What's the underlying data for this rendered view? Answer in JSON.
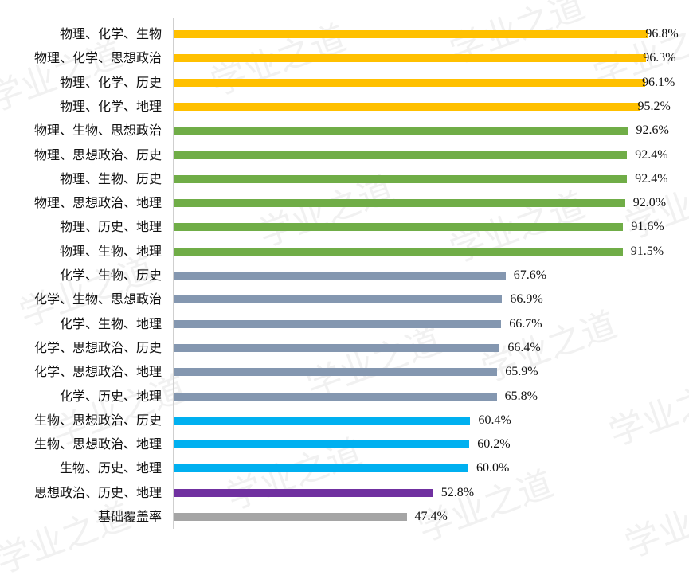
{
  "chart_data": {
    "type": "bar",
    "orientation": "horizontal",
    "title": "",
    "xlabel": "",
    "ylabel": "",
    "xlim": [
      0,
      100
    ],
    "grid": false,
    "legend": null,
    "categories": [
      "物理、化学、生物",
      "物理、化学、思想政治",
      "物理、化学、历史",
      "物理、化学、地理",
      "物理、生物、思想政治",
      "物理、思想政治、历史",
      "物理、生物、历史",
      "物理、思想政治、地理",
      "物理、历史、地理",
      "物理、生物、地理",
      "化学、生物、历史",
      "化学、生物、思想政治",
      "化学、生物、地理",
      "化学、思想政治、历史",
      "化学、思想政治、地理",
      "化学、历史、地理",
      "生物、思想政治、历史",
      "生物、思想政治、地理",
      "生物、历史、地理",
      "思想政治、历史、地理",
      "基础覆盖率"
    ],
    "values": [
      96.8,
      96.3,
      96.1,
      95.2,
      92.6,
      92.4,
      92.4,
      92.0,
      91.6,
      91.5,
      67.6,
      66.9,
      66.7,
      66.4,
      65.9,
      65.8,
      60.4,
      60.2,
      60.0,
      52.8,
      47.4
    ],
    "value_labels": [
      "96.8%",
      "96.3%",
      "96.1%",
      "95.2%",
      "92.6%",
      "92.4%",
      "92.4%",
      "92.0%",
      "91.6%",
      "91.5%",
      "67.6%",
      "66.9%",
      "66.7%",
      "66.4%",
      "65.9%",
      "65.8%",
      "60.4%",
      "60.2%",
      "60.0%",
      "52.8%",
      "47.4%"
    ],
    "bar_colors": [
      "#FFC000",
      "#FFC000",
      "#FFC000",
      "#FFC000",
      "#70AD47",
      "#70AD47",
      "#70AD47",
      "#70AD47",
      "#70AD47",
      "#70AD47",
      "#8497B0",
      "#8497B0",
      "#8497B0",
      "#8497B0",
      "#8497B0",
      "#8497B0",
      "#00B0F0",
      "#00B0F0",
      "#00B0F0",
      "#7030A0",
      "#A5A5A5"
    ]
  },
  "watermark_text": "学业之道"
}
